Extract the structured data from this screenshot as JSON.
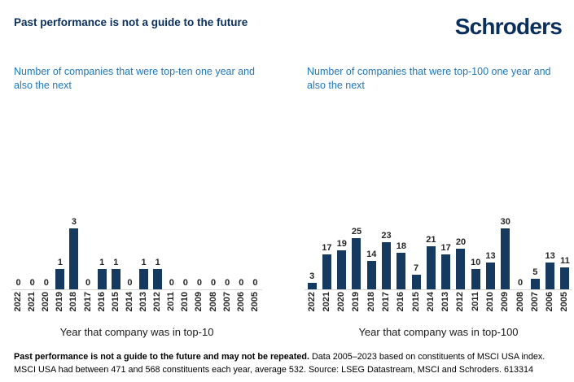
{
  "page": {
    "title": "Past performance is not a guide to the future",
    "logo": "Schroders"
  },
  "chart_data": [
    {
      "type": "bar",
      "title": "Number of companies that were top-ten one year and also the next",
      "xlabel": "Year that company was in top-10",
      "categories": [
        "2022",
        "2021",
        "2020",
        "2019",
        "2018",
        "2017",
        "2016",
        "2015",
        "2014",
        "2013",
        "2012",
        "2011",
        "2010",
        "2009",
        "2008",
        "2007",
        "2006",
        "2005"
      ],
      "values": [
        0,
        0,
        0,
        1,
        3,
        0,
        1,
        1,
        0,
        1,
        1,
        0,
        0,
        0,
        0,
        0,
        0,
        0
      ],
      "ylim": [
        0,
        3
      ],
      "value_labels": true,
      "grid": false,
      "y_axis_visible": false,
      "bar_color": "#15395f"
    },
    {
      "type": "bar",
      "title": "Number of companies that were top-100 one year and also the next",
      "xlabel": "Year that company was in top-100",
      "categories": [
        "2022",
        "2021",
        "2020",
        "2019",
        "2018",
        "2017",
        "2016",
        "2015",
        "2014",
        "2013",
        "2012",
        "2011",
        "2010",
        "2009",
        "2008",
        "2007",
        "2006",
        "2005"
      ],
      "values": [
        3,
        17,
        19,
        25,
        14,
        23,
        18,
        7,
        21,
        17,
        20,
        10,
        13,
        30,
        0,
        5,
        13,
        11
      ],
      "ylim": [
        0,
        30
      ],
      "value_labels": true,
      "grid": false,
      "y_axis_visible": false,
      "bar_color": "#15395f"
    }
  ],
  "footer": {
    "bold": "Past performance is not a guide to the future and may not be repeated.",
    "regular": "Data 2005–2023 based on constituents of MSCI USA index. MSCI USA had between 471 and 568 constituents each year, average 532. Source: LSEG Datastream, MSCI and Schroders. 613314"
  },
  "colors": {
    "navy": "#0b2f5c",
    "subtitle_blue": "#2277b8",
    "bar": "#15395f",
    "axis_line": "#d9d9d9",
    "tick_text": "#262626"
  }
}
